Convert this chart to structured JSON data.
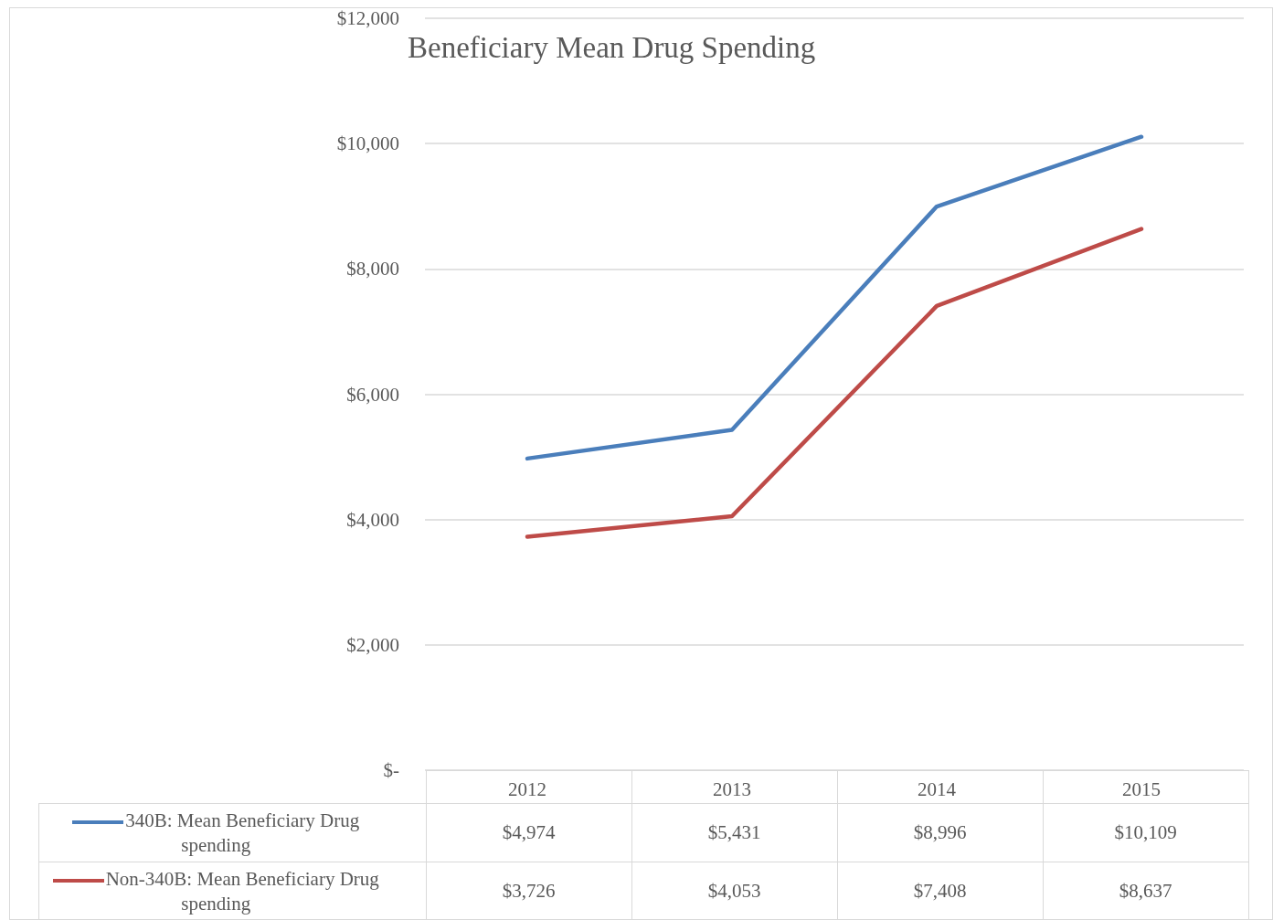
{
  "chart_data": {
    "type": "line",
    "title": "Beneficiary Mean Drug Spending",
    "categories": [
      "2012",
      "2013",
      "2014",
      "2015"
    ],
    "series": [
      {
        "name": "340B: Mean Beneficiary Drug spending",
        "color": "#4a7ebb",
        "values": [
          4974,
          5431,
          8996,
          10109
        ],
        "value_labels": [
          "$4,974",
          "$5,431",
          "$8,996",
          "$10,109"
        ]
      },
      {
        "name": "Non-340B: Mean Beneficiary Drug spending",
        "color": "#be4b48",
        "values": [
          3726,
          4053,
          7408,
          8637
        ],
        "value_labels": [
          "$3,726",
          "$4,053",
          "$7,408",
          "$8,637"
        ]
      }
    ],
    "ylim": [
      0,
      12000
    ],
    "yticks": [
      {
        "value": 0,
        "label": "$-"
      },
      {
        "value": 2000,
        "label": "$2,000"
      },
      {
        "value": 4000,
        "label": "$4,000"
      },
      {
        "value": 6000,
        "label": "$6,000"
      },
      {
        "value": 8000,
        "label": "$8,000"
      },
      {
        "value": 10000,
        "label": "$10,000"
      },
      {
        "value": 12000,
        "label": "$12,000"
      }
    ],
    "grid": "y",
    "legend": "bottom",
    "marker": "none",
    "line_style": "solid"
  }
}
